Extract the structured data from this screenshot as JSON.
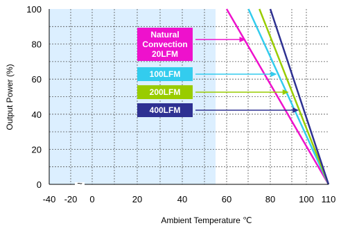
{
  "chart_data": {
    "type": "line",
    "xlabel": "Ambient Temperature ℃",
    "ylabel": "Output Power  (%)",
    "x_ticks": [
      {
        "value": -40,
        "label": "-40"
      },
      {
        "value": -20,
        "label": "-20"
      },
      {
        "value": 0,
        "label": "0"
      },
      {
        "value": 20,
        "label": "20"
      },
      {
        "value": 40,
        "label": "40"
      },
      {
        "value": 60,
        "label": "60"
      },
      {
        "value": 80,
        "label": "80"
      },
      {
        "value": 100,
        "label": "100"
      },
      {
        "value": 110,
        "label": "110"
      }
    ],
    "y_ticks": [
      {
        "value": 0,
        "label": "0"
      },
      {
        "value": 20,
        "label": "20"
      },
      {
        "value": 40,
        "label": "40"
      },
      {
        "value": 60,
        "label": "60"
      },
      {
        "value": 80,
        "label": "80"
      },
      {
        "value": 100,
        "label": "100"
      }
    ],
    "axis_break_symbol": "~",
    "xlim": [
      -40,
      110
    ],
    "ylim": [
      0,
      100
    ],
    "grid": "dashed",
    "shaded_region_x": [
      -40,
      55
    ],
    "shade_color": "#dcefff",
    "series": [
      {
        "name": "Natural\nConvection\n20LFM",
        "color": "#ee11cc",
        "points": [
          [
            60,
            100
          ],
          [
            110,
            0
          ]
        ]
      },
      {
        "name": "100LFM",
        "color": "#33ccee",
        "points": [
          [
            70,
            100
          ],
          [
            110,
            0
          ]
        ]
      },
      {
        "name": "200LFM",
        "color": "#99cc00",
        "points": [
          [
            75,
            100
          ],
          [
            110,
            0
          ]
        ]
      },
      {
        "name": "400LFM",
        "color": "#2e3192",
        "points": [
          [
            80,
            100
          ],
          [
            110,
            0
          ]
        ]
      }
    ]
  }
}
